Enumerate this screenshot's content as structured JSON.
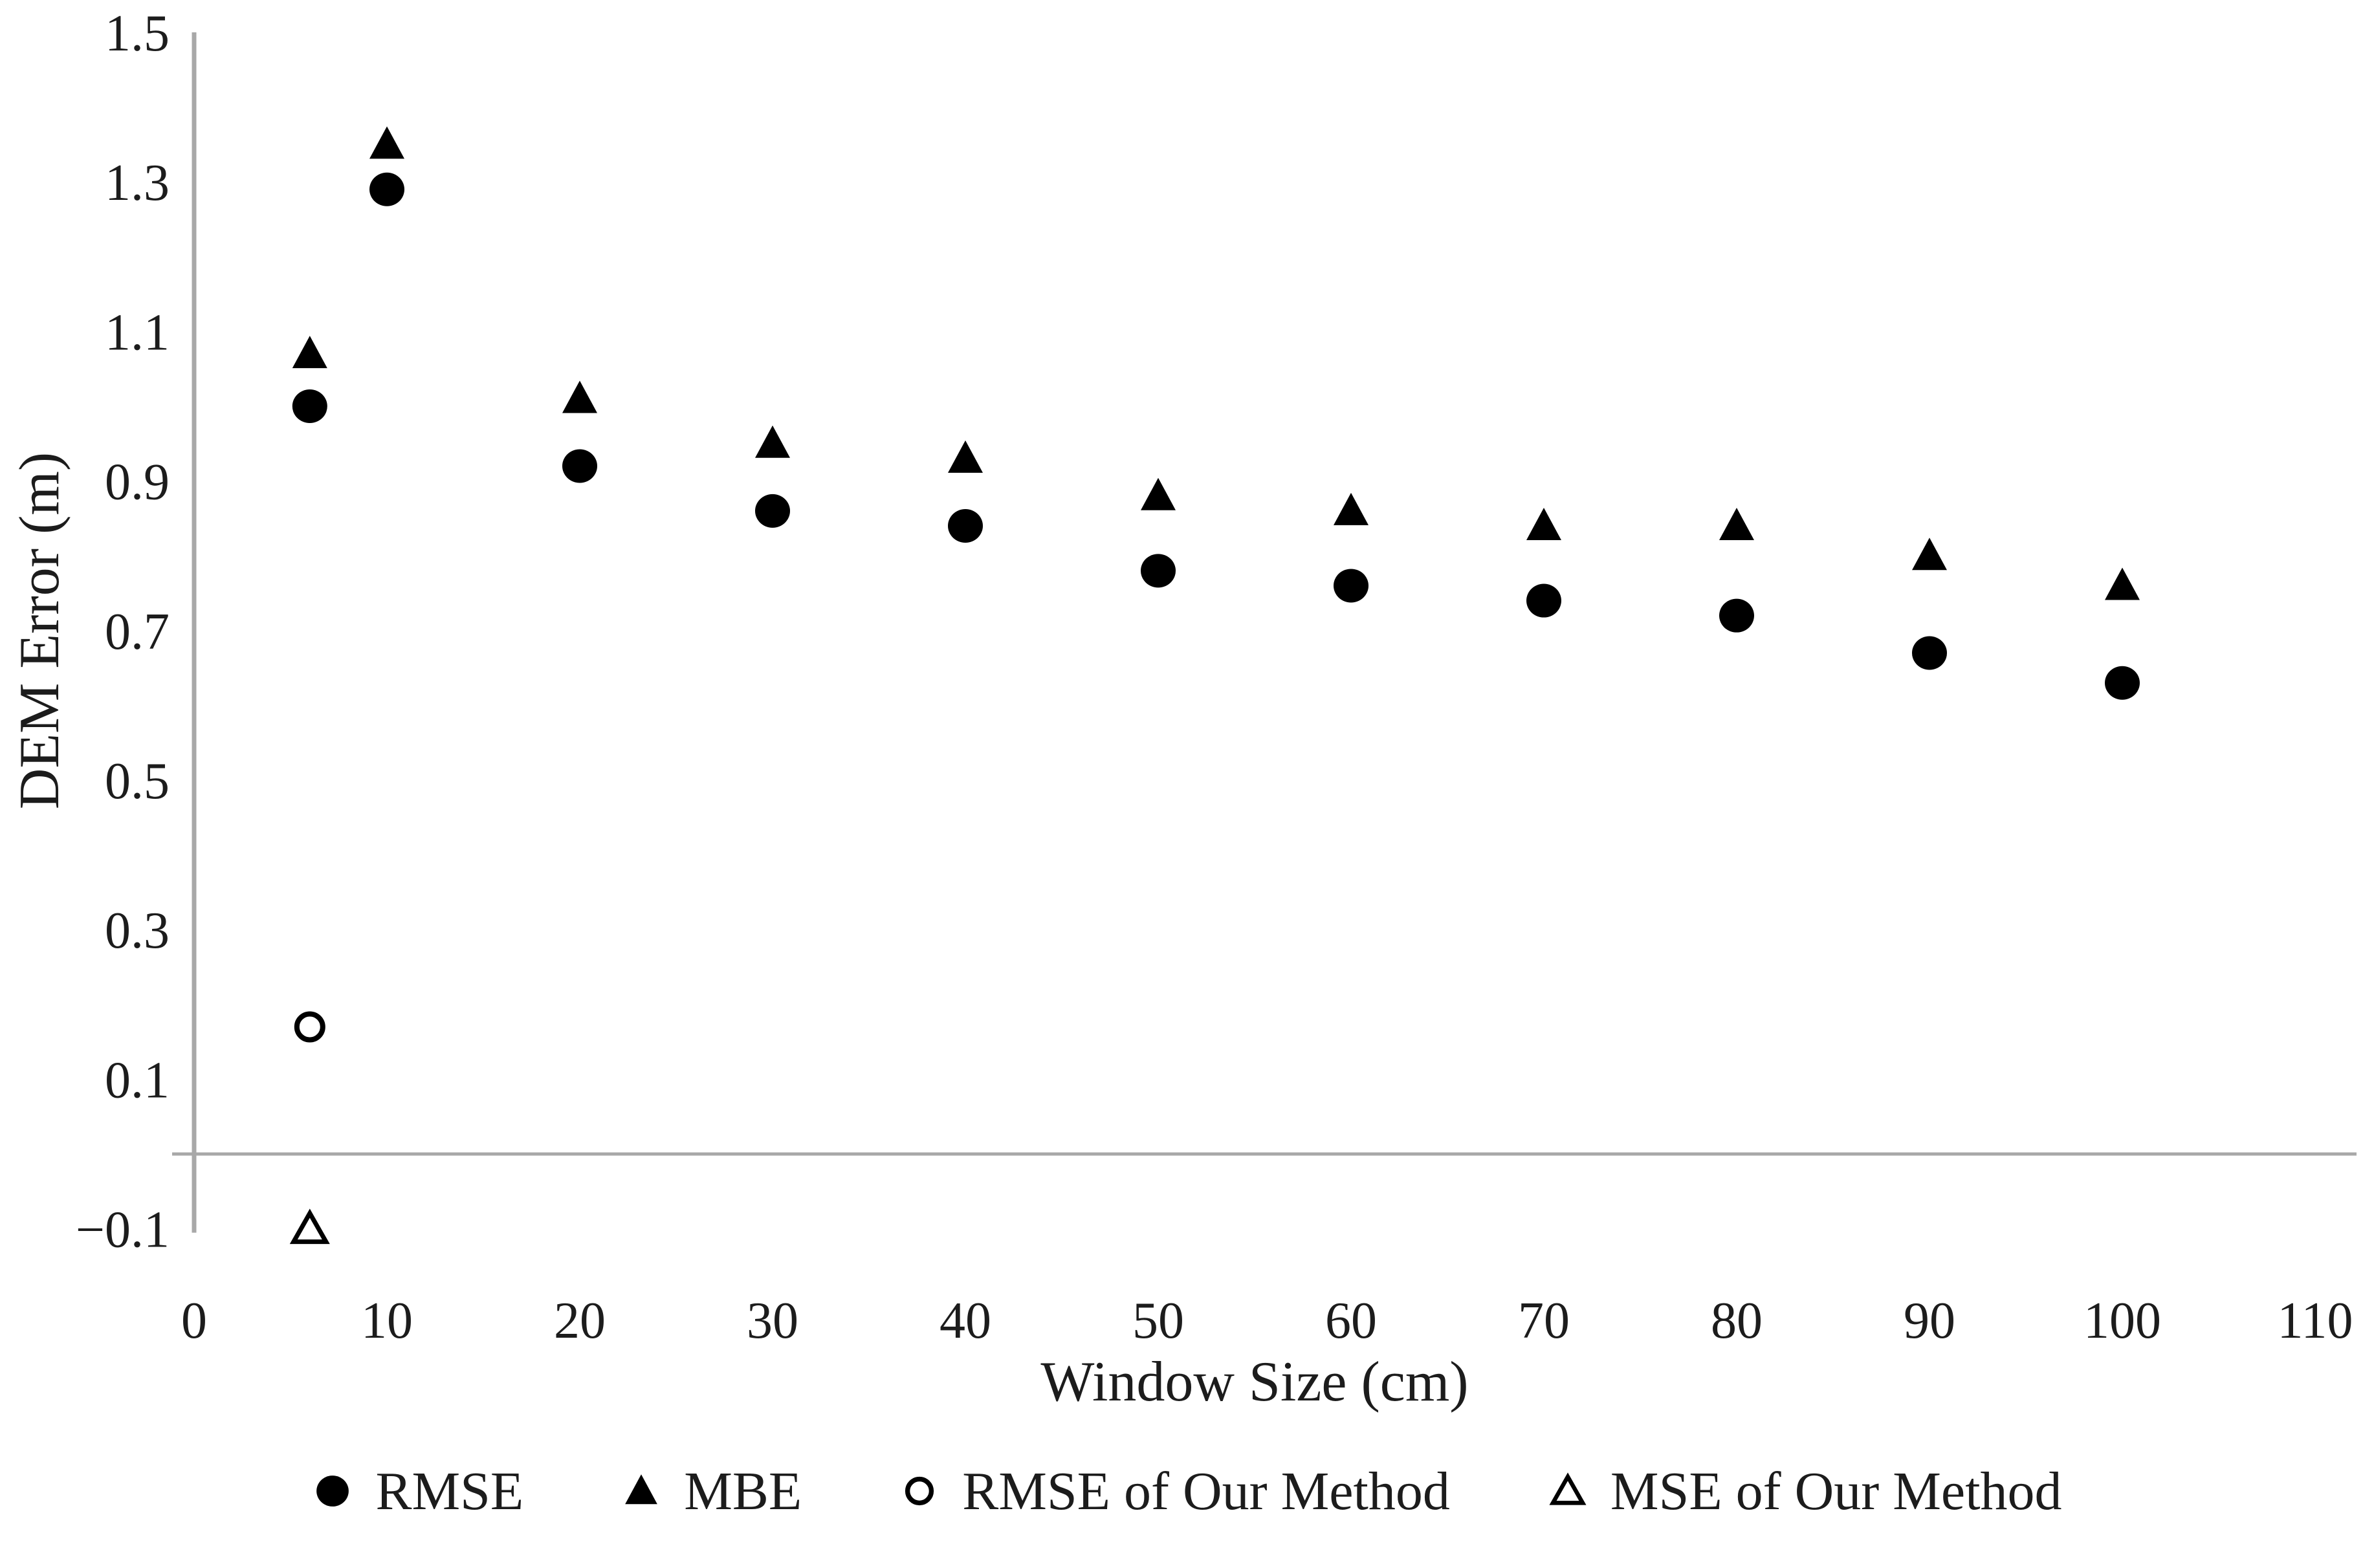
{
  "figure": {
    "background_color": "#ffffff",
    "text_color": "#1c1c1c"
  },
  "chart_data": {
    "type": "scatter",
    "title": "",
    "xlabel": "Window Size (cm)",
    "ylabel": "DEM Error (m)",
    "xlim": [
      0,
      110
    ],
    "ylim": [
      -0.1,
      1.5
    ],
    "x_ticks": [
      0,
      10,
      20,
      30,
      40,
      50,
      60,
      70,
      80,
      90,
      100,
      110
    ],
    "y_ticks": [
      1.5,
      1.3,
      1.1,
      0.9,
      0.7,
      0.5,
      0.3,
      0.1,
      -0.1
    ],
    "y_tick_labels": [
      "1.5",
      "1.3",
      "1.1",
      "0.9",
      "0.7",
      "0.5",
      "0.3",
      "0.1",
      "−0.1"
    ],
    "grid": false,
    "axis_color": "#a8a8a8",
    "marker_color": "#000000",
    "legend_position": "bottom-center",
    "series": [
      {
        "name": "RMSE",
        "marker": "filled-circle",
        "x": [
          6,
          10,
          20,
          30,
          40,
          50,
          60,
          70,
          80,
          90,
          100
        ],
        "y": [
          1.0,
          1.29,
          0.92,
          0.86,
          0.84,
          0.78,
          0.76,
          0.74,
          0.72,
          0.67,
          0.63
        ]
      },
      {
        "name": "MBE",
        "marker": "filled-triangle",
        "x": [
          6,
          10,
          20,
          30,
          40,
          50,
          60,
          70,
          80,
          90,
          100
        ],
        "y": [
          1.07,
          1.35,
          1.01,
          0.95,
          0.93,
          0.88,
          0.86,
          0.84,
          0.84,
          0.8,
          0.76
        ]
      },
      {
        "name": "RMSE of Our Method",
        "marker": "open-circle",
        "x": [
          6
        ],
        "y": [
          0.17
        ]
      },
      {
        "name": "MSE of Our Method",
        "marker": "open-triangle",
        "x": [
          6
        ],
        "y": [
          -0.1
        ]
      }
    ]
  }
}
